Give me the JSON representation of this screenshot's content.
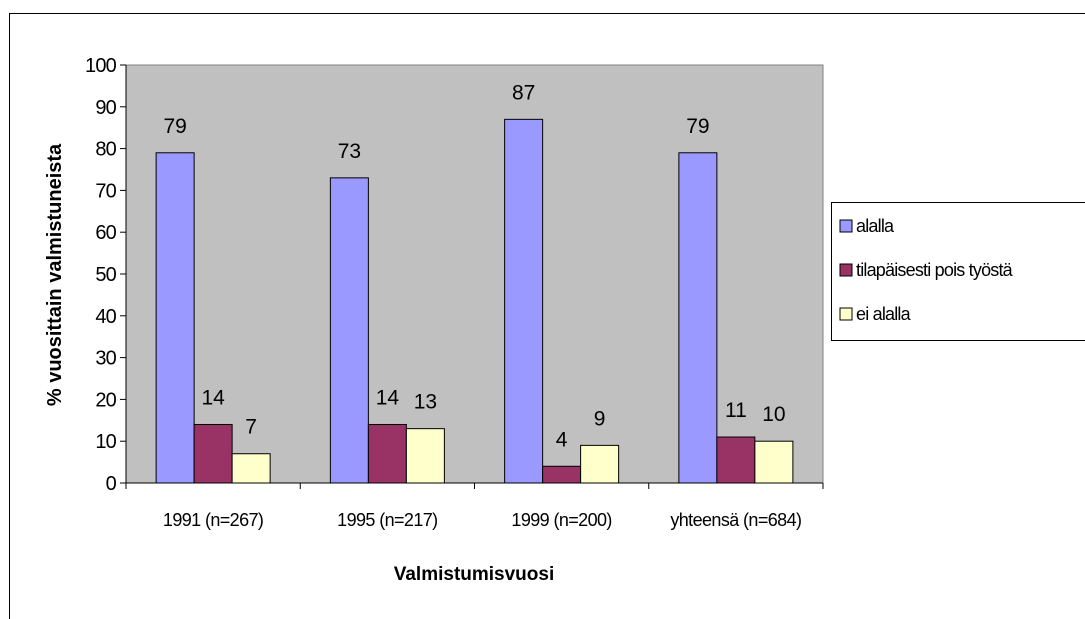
{
  "chart_data": {
    "type": "bar",
    "title": "",
    "xlabel": "Valmistumisvuosi",
    "ylabel": "% vuosittain valmistuneista",
    "categories": [
      "1991 (n=267)",
      "1995 (n=217)",
      "1999 (n=200)",
      "yhteensä (n=684)"
    ],
    "series": [
      {
        "name": "alalla",
        "color": "#9999ff",
        "values": [
          79,
          73,
          87,
          79
        ]
      },
      {
        "name": "tilapäisesti pois työstä",
        "color": "#993366",
        "values": [
          14,
          14,
          4,
          11
        ]
      },
      {
        "name": "ei alalla",
        "color": "#ffffcc",
        "values": [
          7,
          13,
          9,
          10
        ]
      }
    ],
    "ylim": [
      0,
      100
    ],
    "yticks": [
      0,
      10,
      20,
      30,
      40,
      50,
      60,
      70,
      80,
      90,
      100
    ],
    "plot_background": "#c0c0c0",
    "grid": false,
    "legend_position": "right",
    "data_labels": true
  }
}
